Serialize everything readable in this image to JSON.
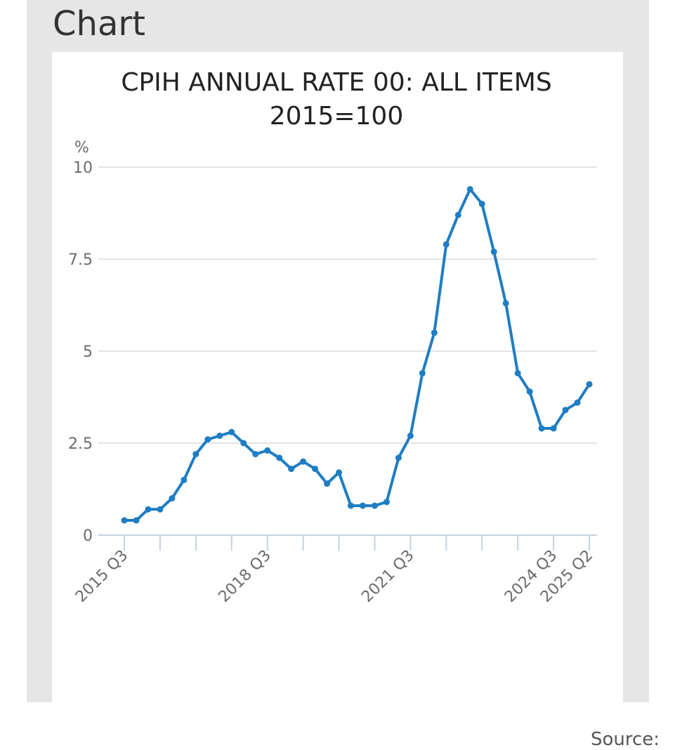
{
  "page": {
    "heading": "Chart",
    "source_label": "Source:"
  },
  "chart_data": {
    "type": "line",
    "title_lines": [
      "CPIH ANNUAL RATE 00: ALL ITEMS",
      "2015=100"
    ],
    "unit_label": "%",
    "ylim": [
      0,
      10
    ],
    "yticks": [
      0,
      2.5,
      5,
      7.5,
      10
    ],
    "ytick_labels": [
      "0",
      "2.5",
      "5",
      "7.5",
      "10"
    ],
    "grid": true,
    "line_color": "#1f7dc4",
    "x_labels": [
      {
        "index": 0,
        "label": "2015 Q3"
      },
      {
        "index": 12,
        "label": "2018 Q3"
      },
      {
        "index": 24,
        "label": "2021 Q3"
      },
      {
        "index": 36,
        "label": "2024 Q3"
      },
      {
        "index": 39,
        "label": "2025 Q2"
      }
    ],
    "x": [
      "2015 Q3",
      "2015 Q4",
      "2016 Q1",
      "2016 Q2",
      "2016 Q3",
      "2016 Q4",
      "2017 Q1",
      "2017 Q2",
      "2017 Q3",
      "2017 Q4",
      "2018 Q1",
      "2018 Q2",
      "2018 Q3",
      "2018 Q4",
      "2019 Q1",
      "2019 Q2",
      "2019 Q3",
      "2019 Q4",
      "2020 Q1",
      "2020 Q2",
      "2020 Q3",
      "2020 Q4",
      "2021 Q1",
      "2021 Q2",
      "2021 Q3",
      "2021 Q4",
      "2022 Q1",
      "2022 Q2",
      "2022 Q3",
      "2022 Q4",
      "2023 Q1",
      "2023 Q2",
      "2023 Q3",
      "2023 Q4",
      "2024 Q1",
      "2024 Q2",
      "2024 Q3",
      "2024 Q4",
      "2025 Q1",
      "2025 Q2"
    ],
    "series": [
      {
        "values": [
          0.4,
          0.4,
          0.7,
          0.7,
          1.0,
          1.5,
          2.2,
          2.6,
          2.7,
          2.8,
          2.5,
          2.2,
          2.3,
          2.1,
          1.8,
          2.0,
          1.8,
          1.4,
          1.7,
          0.8,
          0.8,
          0.8,
          0.9,
          2.1,
          2.7,
          4.4,
          5.5,
          7.9,
          8.7,
          9.4,
          9.0,
          7.7,
          6.3,
          4.4,
          3.9,
          2.9,
          2.9,
          3.4,
          3.6,
          4.1
        ]
      }
    ]
  }
}
